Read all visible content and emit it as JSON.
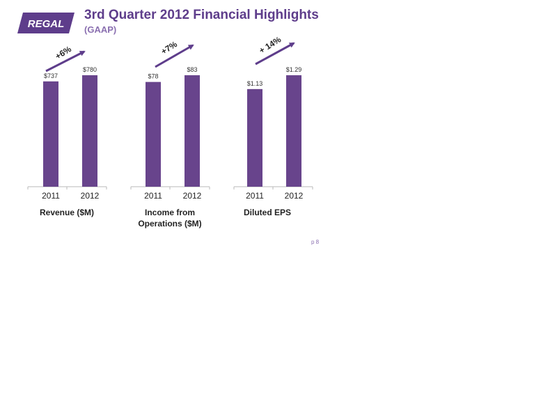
{
  "header": {
    "logo_text": "REGAL",
    "title": "3rd Quarter 2012 Financial Highlights",
    "subtitle": "(GAAP)"
  },
  "colors": {
    "bar": "#68448c",
    "brand": "#5e3d8b",
    "axis": "#b8b8b8"
  },
  "chart_data": [
    {
      "type": "bar",
      "categories": [
        "2011",
        "2012"
      ],
      "values": [
        737,
        780
      ],
      "value_labels": [
        "$737",
        "$780"
      ],
      "xlabel_lines": [
        "Revenue ($M)"
      ],
      "change_label": "+6%"
    },
    {
      "type": "bar",
      "categories": [
        "2011",
        "2012"
      ],
      "values": [
        78,
        83
      ],
      "value_labels": [
        "$78",
        "$83"
      ],
      "xlabel_lines": [
        "Income from",
        "Operations ($M)"
      ],
      "change_label": "+7%"
    },
    {
      "type": "bar",
      "categories": [
        "2011",
        "2012"
      ],
      "values": [
        1.13,
        1.29
      ],
      "value_labels": [
        "$1.13",
        "$1.29"
      ],
      "xlabel_lines": [
        "Diluted EPS"
      ],
      "change_label": "+ 14%"
    }
  ],
  "footer": {
    "page_number": "p 8"
  }
}
